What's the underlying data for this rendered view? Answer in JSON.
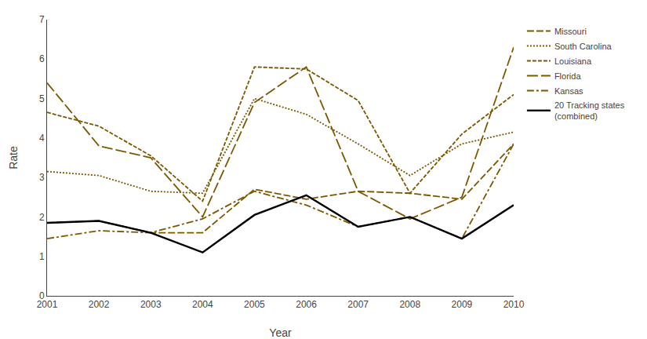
{
  "chart_data": {
    "type": "line",
    "x_label": "Year",
    "y_label": "Rate",
    "x": [
      2001,
      2002,
      2003,
      2004,
      2005,
      2006,
      2007,
      2008,
      2009,
      2010
    ],
    "series": [
      {
        "name": "Missouri",
        "color": "#7B5800",
        "line_style": "dash",
        "values": [
          1.85,
          1.9,
          1.6,
          1.6,
          2.7,
          2.45,
          2.65,
          2.6,
          2.45,
          3.85
        ]
      },
      {
        "name": "South Carolina",
        "color": "#7B5800",
        "line_style": "dot",
        "values": [
          3.15,
          3.05,
          2.65,
          2.6,
          5.0,
          4.6,
          3.85,
          3.05,
          3.85,
          4.15
        ]
      },
      {
        "name": "Louisiana",
        "color": "#7B5800",
        "line_style": "short_dash",
        "values": [
          4.65,
          4.3,
          3.55,
          2.4,
          5.8,
          5.75,
          4.95,
          2.6,
          4.1,
          5.1
        ]
      },
      {
        "name": "Florida",
        "color": "#7B5800",
        "line_style": "long_dash",
        "values": [
          5.4,
          3.8,
          3.5,
          2.0,
          4.9,
          5.8,
          2.65,
          1.95,
          2.5,
          6.3
        ]
      },
      {
        "name": "Kansas",
        "color": "#7B5800",
        "line_style": "dashdot",
        "values": [
          1.45,
          1.65,
          1.6,
          1.95,
          2.65,
          2.3,
          1.75,
          2.0,
          1.45,
          3.85
        ]
      },
      {
        "name": "20 Tracking states\n(combined)",
        "color": "#000000",
        "line_style": "solid",
        "values": [
          1.85,
          1.9,
          1.6,
          1.1,
          2.05,
          2.55,
          1.75,
          2.0,
          1.45,
          2.3
        ]
      }
    ],
    "xlim": [
      2001,
      2010
    ],
    "xticks": [
      2001,
      2002,
      2003,
      2004,
      2005,
      2006,
      2007,
      2008,
      2009,
      2010
    ],
    "ylim": [
      0,
      7
    ],
    "yticks": [
      0,
      1,
      2,
      3,
      4,
      5,
      6,
      7
    ],
    "grid": false,
    "legend": "right"
  }
}
